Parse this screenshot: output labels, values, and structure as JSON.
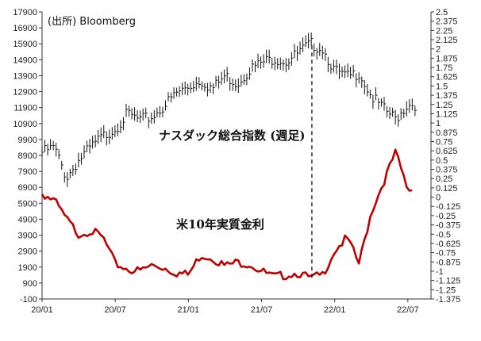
{
  "chart_data": {
    "type": "line",
    "source_label": "(出所) Bloomberg",
    "annotations": {
      "nasdaq_label": "ナスダック総合指数 (週足)",
      "yield_label": "米10年実質金利"
    },
    "x_ticks": [
      "20/01",
      "20/07",
      "21/01",
      "21/07",
      "22/01",
      "22/07"
    ],
    "x_tick_dates": [
      "2020-01",
      "2020-07",
      "2021-01",
      "2021-07",
      "2022-01",
      "2022-07"
    ],
    "x_range": [
      "2020-01",
      "2022-08"
    ],
    "y_left": {
      "min": -100,
      "max": 17900,
      "ticks": [
        "-100",
        "900",
        "1900",
        "2900",
        "3900",
        "4900",
        "5900",
        "6900",
        "7900",
        "8900",
        "9900",
        "10900",
        "11900",
        "12900",
        "13900",
        "14900",
        "15900",
        "16900",
        "17900"
      ]
    },
    "y_right": {
      "min": -1.375,
      "max": 2.5,
      "ticks": [
        "-1.375",
        "-1.25",
        "-1.125",
        "-1",
        "-0.875",
        "-0.75",
        "-0.625",
        "-0.5",
        "-0.375",
        "-0.25",
        "-0.125",
        "0",
        "0.125",
        "0.25",
        "0.375",
        "0.5",
        "0.625",
        "0.75",
        "0.875",
        "1",
        "1.125",
        "1.25",
        "1.375",
        "1.5",
        "1.625",
        "1.75",
        "1.875",
        "2",
        "2.125",
        "2.25",
        "2.375",
        "2.5"
      ]
    },
    "dashed_line_date": "2021-11",
    "series": [
      {
        "axis": "left",
        "color": "#111111",
        "style": "ohlc-weekly",
        "x": [
          "2020-01",
          "2020-02",
          "2020-03",
          "2020-04",
          "2020-05",
          "2020-06",
          "2020-07",
          "2020-08",
          "2020-09",
          "2020-10",
          "2020-11",
          "2020-12",
          "2021-01",
          "2021-02",
          "2021-03",
          "2021-04",
          "2021-05",
          "2021-06",
          "2021-07",
          "2021-08",
          "2021-09",
          "2021-10",
          "2021-11",
          "2021-12",
          "2022-01",
          "2022-02",
          "2022-03",
          "2022-04",
          "2022-05",
          "2022-06",
          "2022-07"
        ],
        "values": [
          9100,
          9400,
          7500,
          8600,
          9400,
          10100,
          10600,
          11500,
          11100,
          11300,
          12000,
          12800,
          13200,
          13600,
          13100,
          13900,
          13400,
          14300,
          14700,
          15000,
          14800,
          15300,
          15900,
          15600,
          14200,
          13800,
          14100,
          12600,
          11800,
          11200,
          12100
        ]
      },
      {
        "axis": "right",
        "color": "#c00000",
        "style": "line",
        "x": [
          "2020-01",
          "2020-02",
          "2020-03",
          "2020-04",
          "2020-05",
          "2020-06",
          "2020-07",
          "2020-08",
          "2020-09",
          "2020-10",
          "2020-11",
          "2020-12",
          "2021-01",
          "2021-02",
          "2021-03",
          "2021-04",
          "2021-05",
          "2021-06",
          "2021-07",
          "2021-08",
          "2021-09",
          "2021-10",
          "2021-11",
          "2021-12",
          "2022-01",
          "2022-02",
          "2022-03",
          "2022-04",
          "2022-05",
          "2022-06",
          "2022-07"
        ],
        "values": [
          0.05,
          -0.05,
          -0.3,
          -0.5,
          -0.45,
          -0.55,
          -0.9,
          -0.97,
          -1.0,
          -0.92,
          -0.95,
          -1.02,
          -1.05,
          -0.78,
          -0.82,
          -0.93,
          -0.88,
          -0.9,
          -1.0,
          -1.08,
          -1.05,
          -1.02,
          -1.1,
          -1.05,
          -0.72,
          -0.55,
          -0.9,
          -0.2,
          0.2,
          0.6,
          0.1
        ]
      }
    ]
  }
}
